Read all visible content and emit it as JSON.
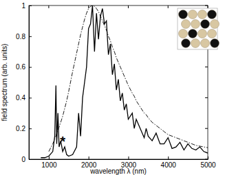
{
  "chart_data": {
    "type": "line",
    "x_label": "wavelength λ (nm)",
    "y_label": "field spectrum (arb. units)",
    "x": [
      800,
      900,
      1000,
      1100,
      1150,
      1180,
      1200,
      1230,
      1260,
      1300,
      1350,
      1400,
      1450,
      1500,
      1600,
      1700,
      1750,
      1800,
      1850,
      1900,
      1950,
      2000,
      2050,
      2100,
      2150,
      2200,
      2250,
      2300,
      2350,
      2400,
      2450,
      2500,
      2550,
      2600,
      2650,
      2700,
      2750,
      2800,
      2850,
      2900,
      2950,
      3000,
      3100,
      3150,
      3200,
      3300,
      3400,
      3450,
      3500,
      3600,
      3700,
      3800,
      3900,
      4000,
      4100,
      4200,
      4300,
      4400,
      4500,
      4600,
      4700,
      4800,
      4900,
      5000
    ],
    "series": [
      {
        "color": "#000000",
        "line_style": "solid",
        "values": [
          0.01,
          0.01,
          0.02,
          0.05,
          0.15,
          0.48,
          0.1,
          0.3,
          0.08,
          0.12,
          0.05,
          0.08,
          0.03,
          0.02,
          0.03,
          0.08,
          0.3,
          0.15,
          0.4,
          0.5,
          0.6,
          0.85,
          0.88,
          1.0,
          0.7,
          0.95,
          0.78,
          0.93,
          0.98,
          0.88,
          0.9,
          0.68,
          0.75,
          0.55,
          0.62,
          0.45,
          0.52,
          0.38,
          0.43,
          0.32,
          0.36,
          0.26,
          0.3,
          0.2,
          0.26,
          0.2,
          0.14,
          0.2,
          0.15,
          0.12,
          0.17,
          0.1,
          0.1,
          0.14,
          0.07,
          0.08,
          0.11,
          0.06,
          0.1,
          0.07,
          0.06,
          0.08,
          0.05,
          0.04
        ]
      },
      {
        "color": "#000000",
        "line_style": "dashdot",
        "values": [
          null,
          null,
          0.05,
          0.1,
          0.13,
          0.15,
          0.17,
          0.19,
          0.21,
          0.24,
          0.28,
          0.33,
          0.38,
          0.44,
          0.57,
          0.69,
          0.75,
          0.81,
          0.86,
          0.91,
          0.95,
          0.98,
          0.995,
          1.0,
          0.995,
          0.98,
          0.96,
          0.93,
          0.9,
          0.87,
          0.84,
          0.8,
          0.77,
          0.73,
          0.7,
          0.66,
          0.63,
          0.6,
          0.57,
          0.54,
          0.51,
          0.48,
          0.43,
          0.41,
          0.38,
          0.34,
          0.3,
          0.29,
          0.27,
          0.24,
          0.22,
          0.2,
          0.18,
          0.16,
          0.15,
          0.14,
          0.13,
          0.12,
          0.11,
          0.1,
          0.09,
          0.085,
          0.08,
          0.075
        ]
      }
    ],
    "xlim": [
      500,
      5000
    ],
    "xticks": [
      1000,
      2000,
      3000,
      4000,
      5000
    ],
    "ylim": [
      0,
      1
    ],
    "yticks": [
      0,
      0.2,
      0.4,
      0.6,
      0.8,
      1
    ],
    "grid": false,
    "annotations": [
      {
        "text": "*",
        "x": 1350,
        "y": 0.12
      }
    ]
  }
}
